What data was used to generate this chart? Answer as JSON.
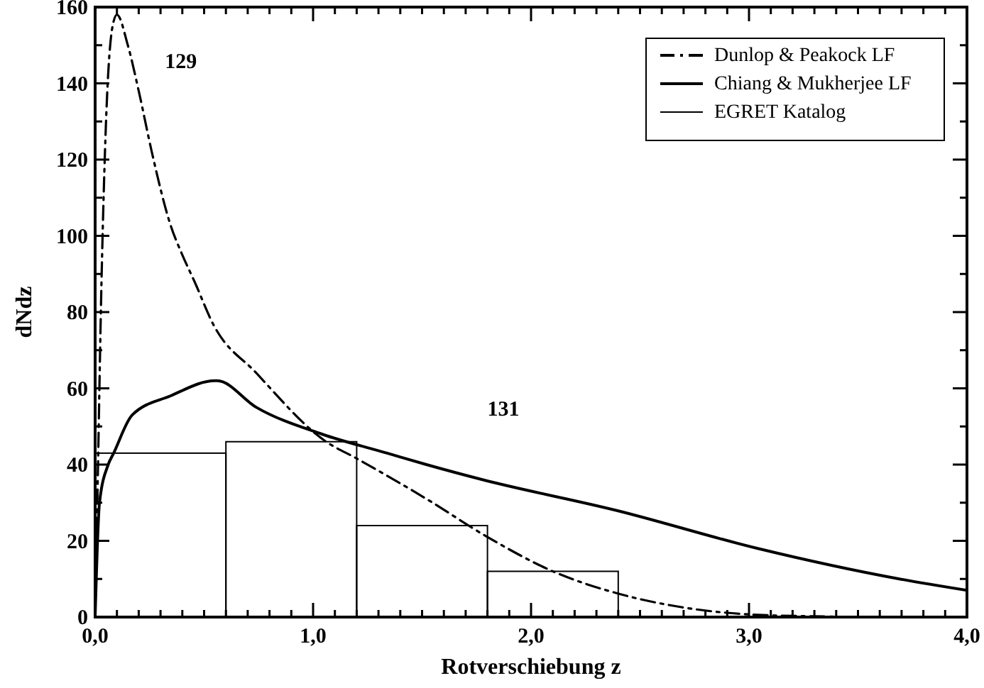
{
  "chart_data": {
    "type": "line",
    "xlabel": "Rotverschiebung z",
    "ylabel": "dNdz",
    "xlim": [
      0,
      4
    ],
    "ylim": [
      0,
      160
    ],
    "xticks": [
      {
        "value": 0,
        "label": "0,0"
      },
      {
        "value": 0.1,
        "label": null
      },
      {
        "value": 0.2,
        "label": null
      },
      {
        "value": 0.3,
        "label": null
      },
      {
        "value": 0.4,
        "label": null
      },
      {
        "value": 0.5,
        "label": null
      },
      {
        "value": 0.6,
        "label": null
      },
      {
        "value": 0.7,
        "label": null
      },
      {
        "value": 0.8,
        "label": null
      },
      {
        "value": 0.9,
        "label": null
      },
      {
        "value": 1,
        "label": "1,0"
      },
      {
        "value": 1.1,
        "label": null
      },
      {
        "value": 1.2,
        "label": null
      },
      {
        "value": 1.3,
        "label": null
      },
      {
        "value": 1.4,
        "label": null
      },
      {
        "value": 1.5,
        "label": null
      },
      {
        "value": 1.6,
        "label": null
      },
      {
        "value": 1.7,
        "label": null
      },
      {
        "value": 1.8,
        "label": null
      },
      {
        "value": 1.9,
        "label": null
      },
      {
        "value": 2,
        "label": "2,0"
      },
      {
        "value": 2.1,
        "label": null
      },
      {
        "value": 2.2,
        "label": null
      },
      {
        "value": 2.3,
        "label": null
      },
      {
        "value": 2.4,
        "label": null
      },
      {
        "value": 2.5,
        "label": null
      },
      {
        "value": 2.6,
        "label": null
      },
      {
        "value": 2.7,
        "label": null
      },
      {
        "value": 2.8,
        "label": null
      },
      {
        "value": 2.9,
        "label": null
      },
      {
        "value": 3,
        "label": "3,0"
      },
      {
        "value": 3.1,
        "label": null
      },
      {
        "value": 3.2,
        "label": null
      },
      {
        "value": 3.3,
        "label": null
      },
      {
        "value": 3.4,
        "label": null
      },
      {
        "value": 3.5,
        "label": null
      },
      {
        "value": 3.6,
        "label": null
      },
      {
        "value": 3.7,
        "label": null
      },
      {
        "value": 3.8,
        "label": null
      },
      {
        "value": 3.9,
        "label": null
      },
      {
        "value": 4,
        "label": "4,0"
      }
    ],
    "yticks": [
      0,
      {
        "value": 10,
        "label": null
      },
      20,
      {
        "value": 30,
        "label": null
      },
      40,
      {
        "value": 50,
        "label": null
      },
      60,
      {
        "value": 70,
        "label": null
      },
      80,
      {
        "value": 90,
        "label": null
      },
      100,
      {
        "value": 110,
        "label": null
      },
      120,
      {
        "value": 130,
        "label": null
      },
      140,
      {
        "value": 150,
        "label": null
      },
      160
    ],
    "grid": false,
    "legend": "top right",
    "annotations": [
      "129",
      "131"
    ],
    "series": [
      {
        "name": "Dunlop & Peakock LF",
        "color": "#000000",
        "line_style": "dashdot",
        "x": [
          0,
          0.01,
          0.03,
          0.05,
          0.08,
          0.1,
          0.15,
          0.2,
          0.26,
          0.345,
          0.4,
          0.456,
          0.54,
          0.74,
          1.06,
          1.2,
          1.52,
          1.8,
          2.1,
          2.41,
          2.69,
          3,
          3.3,
          3.6,
          4
        ],
        "values": [
          0,
          30,
          90,
          130,
          155,
          158,
          150,
          138,
          122,
          103,
          95,
          88,
          77,
          64,
          46,
          41.6,
          31,
          21,
          12,
          6,
          2.6,
          0.7,
          0.2,
          0,
          0
        ]
      },
      {
        "name": "Chiang & Mukherjee LF",
        "color": "#000000",
        "line_style": "solid",
        "x": [
          0,
          0.02,
          0.06,
          0.085,
          0.17,
          0.345,
          0.55,
          0.56,
          0.74,
          1.04,
          1.34,
          1.52,
          1.78,
          2.39,
          3.04,
          3.69,
          4
        ],
        "values": [
          0,
          30,
          40,
          43,
          53,
          58,
          62,
          62,
          55,
          48,
          43,
          40,
          36,
          28,
          18,
          10,
          7
        ]
      },
      {
        "name": "EGRET Katalog",
        "type": "histogram",
        "color": "#000000",
        "bins": [
          0,
          0.6,
          1.2,
          1.8,
          2.4
        ],
        "values": [
          43,
          46,
          24,
          12
        ]
      }
    ]
  }
}
